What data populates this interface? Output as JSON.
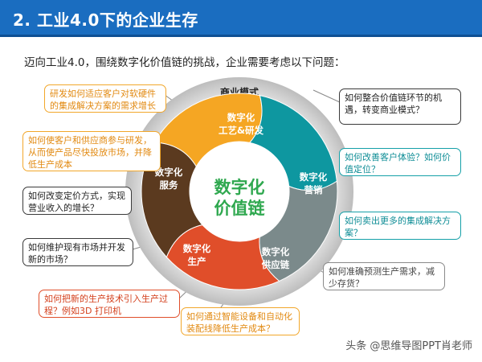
{
  "header": {
    "title": "2. 工业4.0下的企业生存"
  },
  "intro_text": "迈向工业4.0，围绕数字化价值链的挑战，企业需要考虑以下问题：",
  "diagram": {
    "outer_ring_label": "商业模式",
    "center_label_line1": "数字化",
    "center_label_line2": "价值链",
    "segments": [
      {
        "line1": "数字化",
        "line2": "工艺&研发",
        "color": "#f5a623"
      },
      {
        "line1": "数字化",
        "line2": "营销",
        "color": "#0e97a0"
      },
      {
        "line1": "数字化",
        "line2": "供应链",
        "color": "#7b8a8b"
      },
      {
        "line1": "数字化",
        "line2": "生产",
        "color": "#e04e2a"
      },
      {
        "line1": "数字化",
        "line2": "服务",
        "color": "#5b3a1f"
      }
    ]
  },
  "questions": {
    "rd_1": "研发如何适应客户对软硬件的集成解决方案的需求增长",
    "rd_2": "如何使客户和供应商参与研发，从而使产品尽快投放市场，并降低生产成本",
    "service_1": "如何改变定价方式，实现营业收入的增长？",
    "service_2": "如何维护现有市场并开发新的市场？",
    "business_model": "如何整合价值链环节的机遇，转变商业模式？",
    "marketing_1": "如何改善客户体验？如何价值定位？",
    "marketing_2": "如何卖出更多的集成解决方案？",
    "supply_chain": "如何准确预测生产需求，减少存货？",
    "production_1": "如何把新的生产技术引入生产过程？例如3D 打印机",
    "production_2": "如何通过智能设备和自动化装配线降低生产成本？"
  },
  "watermark": "头条 @思维导图PPT肖老师"
}
